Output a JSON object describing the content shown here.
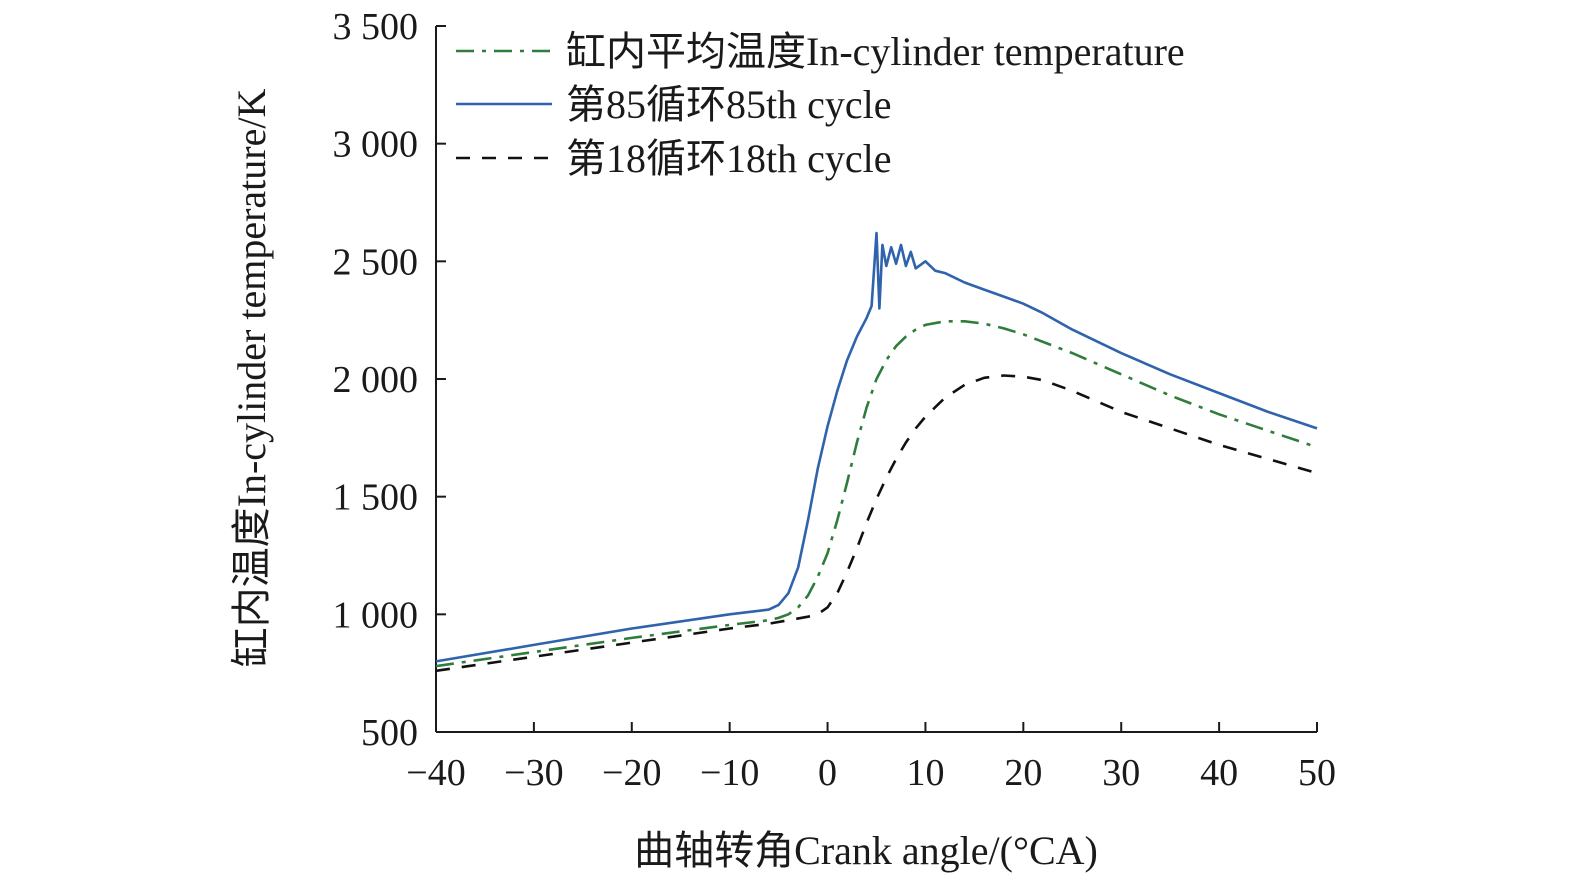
{
  "chart_data": {
    "type": "line",
    "title": "",
    "xlabel": "曲轴转角Crank angle/(°CA)",
    "ylabel": "缸内温度In-cylinder temperature/K",
    "xlim": [
      -40,
      50
    ],
    "ylim": [
      500,
      3500
    ],
    "x_ticks": [
      -40,
      -30,
      -20,
      -10,
      0,
      10,
      20,
      30,
      40,
      50
    ],
    "x_tick_labels": [
      "−40",
      "−30",
      "−20",
      "−10",
      "0",
      "10",
      "20",
      "30",
      "40",
      "50"
    ],
    "y_ticks": [
      500,
      1000,
      1500,
      2000,
      2500,
      3000,
      3500
    ],
    "y_tick_labels": [
      "500",
      "1 000",
      "1 500",
      "2 000",
      "2 500",
      "3 000",
      "3 500"
    ],
    "grid": false,
    "legend_position": "top-left",
    "series": [
      {
        "name": "缸内平均温度In-cylinder temperature",
        "color": "#2e7d3a",
        "style": "dashdot",
        "x": [
          -40,
          -30,
          -20,
          -10,
          -6,
          -5,
          -4,
          -3,
          -2,
          -1,
          0,
          1,
          2,
          3,
          4,
          5,
          6,
          7,
          8,
          9,
          10,
          12,
          14,
          16,
          18,
          20,
          25,
          30,
          35,
          40,
          45,
          50
        ],
        "y": [
          780,
          840,
          900,
          955,
          975,
          985,
          1000,
          1030,
          1080,
          1160,
          1260,
          1400,
          1560,
          1730,
          1880,
          2000,
          2080,
          2140,
          2180,
          2210,
          2230,
          2245,
          2245,
          2235,
          2215,
          2190,
          2110,
          2020,
          1930,
          1850,
          1780,
          1710
        ]
      },
      {
        "name": "第85循环85th cycle",
        "color": "#2f63ac",
        "style": "solid",
        "x": [
          -40,
          -30,
          -20,
          -10,
          -6,
          -5,
          -4,
          -3,
          -2,
          -1,
          0,
          1,
          2,
          3,
          4,
          4.5,
          5,
          5.3,
          5.6,
          6,
          6.5,
          7,
          7.5,
          8,
          8.5,
          9,
          10,
          11,
          12,
          14,
          16,
          18,
          20,
          22,
          25,
          30,
          35,
          40,
          45,
          50
        ],
        "y": [
          800,
          870,
          940,
          1000,
          1020,
          1040,
          1090,
          1200,
          1400,
          1620,
          1800,
          1950,
          2080,
          2180,
          2260,
          2310,
          2620,
          2300,
          2570,
          2480,
          2560,
          2490,
          2570,
          2480,
          2540,
          2470,
          2500,
          2460,
          2450,
          2410,
          2380,
          2350,
          2320,
          2280,
          2210,
          2110,
          2020,
          1940,
          1860,
          1790
        ]
      },
      {
        "name": "第18循环18th cycle",
        "color": "#111111",
        "style": "dashed",
        "x": [
          -40,
          -30,
          -20,
          -10,
          -6,
          -4,
          -2,
          -1,
          0,
          1,
          2,
          3,
          4,
          5,
          6,
          7,
          8,
          9,
          10,
          12,
          14,
          16,
          18,
          20,
          22,
          25,
          30,
          35,
          40,
          45,
          50
        ],
        "y": [
          760,
          820,
          880,
          940,
          960,
          975,
          990,
          1000,
          1030,
          1090,
          1180,
          1280,
          1390,
          1490,
          1580,
          1660,
          1730,
          1790,
          1840,
          1920,
          1975,
          2005,
          2015,
          2010,
          1995,
          1950,
          1860,
          1790,
          1720,
          1660,
          1600
        ]
      }
    ]
  }
}
